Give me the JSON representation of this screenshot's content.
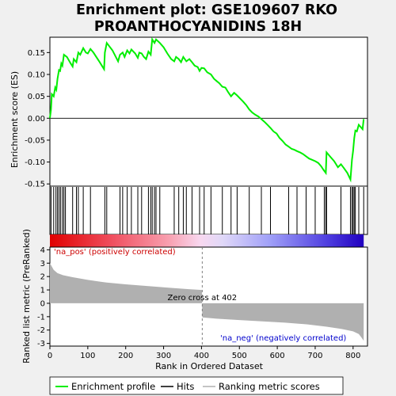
{
  "title_line1": "Enrichment plot: GSE109607 RKO",
  "title_line2": "PROANTHOCYANIDINS 18H",
  "chart_data": {
    "type": "line",
    "x_label": "Rank in Ordered Dataset",
    "top_panel": {
      "ylabel": "Enrichment score (ES)",
      "ylim": [
        -0.155,
        0.185
      ],
      "yticks": [
        "0.15",
        "0.10",
        "0.05",
        "0.00",
        "-0.05",
        "-0.10",
        "-0.15"
      ],
      "ytick_values": [
        0.15,
        0.1,
        0.05,
        0.0,
        -0.05,
        -0.1,
        -0.15
      ],
      "series_color": "#00ee00",
      "es_curve": [
        [
          0,
          0.0
        ],
        [
          3,
          0.02
        ],
        [
          5,
          0.055
        ],
        [
          10,
          0.05
        ],
        [
          14,
          0.07
        ],
        [
          17,
          0.065
        ],
        [
          20,
          0.09
        ],
        [
          24,
          0.11
        ],
        [
          27,
          0.108
        ],
        [
          30,
          0.125
        ],
        [
          33,
          0.12
        ],
        [
          37,
          0.145
        ],
        [
          45,
          0.14
        ],
        [
          55,
          0.125
        ],
        [
          60,
          0.118
        ],
        [
          63,
          0.135
        ],
        [
          70,
          0.128
        ],
        [
          75,
          0.15
        ],
        [
          80,
          0.145
        ],
        [
          88,
          0.16
        ],
        [
          95,
          0.15
        ],
        [
          100,
          0.148
        ],
        [
          107,
          0.158
        ],
        [
          115,
          0.15
        ],
        [
          130,
          0.13
        ],
        [
          143,
          0.112
        ],
        [
          145,
          0.15
        ],
        [
          150,
          0.172
        ],
        [
          165,
          0.155
        ],
        [
          180,
          0.13
        ],
        [
          185,
          0.145
        ],
        [
          192,
          0.15
        ],
        [
          197,
          0.14
        ],
        [
          204,
          0.155
        ],
        [
          210,
          0.148
        ],
        [
          215,
          0.157
        ],
        [
          225,
          0.148
        ],
        [
          232,
          0.138
        ],
        [
          236,
          0.15
        ],
        [
          242,
          0.148
        ],
        [
          248,
          0.14
        ],
        [
          254,
          0.135
        ],
        [
          260,
          0.152
        ],
        [
          266,
          0.145
        ],
        [
          270,
          0.18
        ],
        [
          276,
          0.172
        ],
        [
          280,
          0.18
        ],
        [
          290,
          0.172
        ],
        [
          300,
          0.162
        ],
        [
          310,
          0.148
        ],
        [
          320,
          0.135
        ],
        [
          328,
          0.13
        ],
        [
          333,
          0.14
        ],
        [
          340,
          0.135
        ],
        [
          346,
          0.128
        ],
        [
          352,
          0.14
        ],
        [
          360,
          0.13
        ],
        [
          368,
          0.135
        ],
        [
          375,
          0.128
        ],
        [
          382,
          0.12
        ],
        [
          390,
          0.117
        ],
        [
          395,
          0.108
        ],
        [
          400,
          0.115
        ],
        [
          407,
          0.114
        ],
        [
          415,
          0.105
        ],
        [
          425,
          0.1
        ],
        [
          433,
          0.09
        ],
        [
          440,
          0.085
        ],
        [
          447,
          0.08
        ],
        [
          455,
          0.072
        ],
        [
          463,
          0.07
        ],
        [
          470,
          0.06
        ],
        [
          478,
          0.05
        ],
        [
          486,
          0.058
        ],
        [
          494,
          0.052
        ],
        [
          502,
          0.045
        ],
        [
          510,
          0.038
        ],
        [
          518,
          0.03
        ],
        [
          526,
          0.02
        ],
        [
          534,
          0.013
        ],
        [
          542,
          0.008
        ],
        [
          550,
          0.004
        ],
        [
          558,
          -0.002
        ],
        [
          566,
          -0.008
        ],
        [
          574,
          -0.015
        ],
        [
          582,
          -0.022
        ],
        [
          590,
          -0.03
        ],
        [
          598,
          -0.035
        ],
        [
          606,
          -0.045
        ],
        [
          614,
          -0.052
        ],
        [
          622,
          -0.06
        ],
        [
          630,
          -0.065
        ],
        [
          638,
          -0.07
        ],
        [
          645,
          -0.072
        ],
        [
          652,
          -0.075
        ],
        [
          660,
          -0.078
        ],
        [
          668,
          -0.082
        ],
        [
          676,
          -0.087
        ],
        [
          684,
          -0.092
        ],
        [
          692,
          -0.095
        ],
        [
          700,
          -0.098
        ],
        [
          708,
          -0.102
        ],
        [
          716,
          -0.11
        ],
        [
          722,
          -0.118
        ],
        [
          728,
          -0.125
        ],
        [
          730,
          -0.078
        ],
        [
          740,
          -0.088
        ],
        [
          750,
          -0.098
        ],
        [
          760,
          -0.112
        ],
        [
          768,
          -0.105
        ],
        [
          775,
          -0.113
        ],
        [
          785,
          -0.125
        ],
        [
          793,
          -0.14
        ],
        [
          797,
          -0.095
        ],
        [
          800,
          -0.075
        ],
        [
          803,
          -0.045
        ],
        [
          806,
          -0.028
        ],
        [
          810,
          -0.03
        ],
        [
          815,
          -0.015
        ],
        [
          820,
          -0.02
        ],
        [
          825,
          -0.025
        ],
        [
          828,
          -0.002
        ]
      ]
    },
    "hits_panel": {
      "hit_ranks": [
        3,
        10,
        16,
        20,
        24,
        28,
        33,
        37,
        41,
        60,
        70,
        75,
        88,
        107,
        145,
        150,
        185,
        192,
        204,
        215,
        232,
        242,
        260,
        266,
        270,
        276,
        280,
        290,
        328,
        340,
        352,
        360,
        375,
        395,
        407,
        425,
        455,
        478,
        494,
        526,
        558,
        582,
        630,
        652,
        676,
        700,
        724,
        728,
        730,
        768,
        793,
        797,
        800,
        803,
        806,
        815,
        828
      ]
    },
    "ranked_panel": {
      "ylabel": "Ranked list metric (PreRanked)",
      "ylim": [
        -3.2,
        4.2
      ],
      "yticks": [
        "4",
        "3",
        "2",
        "1",
        "0",
        "-1",
        "-2",
        "-3"
      ],
      "ytick_values": [
        4,
        3,
        2,
        1,
        0,
        -1,
        -2,
        -3
      ],
      "metric_curve": [
        [
          0,
          3.0
        ],
        [
          5,
          2.75
        ],
        [
          10,
          2.5
        ],
        [
          20,
          2.25
        ],
        [
          35,
          2.1
        ],
        [
          60,
          1.95
        ],
        [
          100,
          1.75
        ],
        [
          150,
          1.55
        ],
        [
          200,
          1.42
        ],
        [
          260,
          1.28
        ],
        [
          320,
          1.15
        ],
        [
          370,
          1.05
        ],
        [
          401,
          1.0
        ],
        [
          402,
          -1.05
        ],
        [
          440,
          -1.15
        ],
        [
          500,
          -1.25
        ],
        [
          560,
          -1.35
        ],
        [
          620,
          -1.45
        ],
        [
          680,
          -1.58
        ],
        [
          730,
          -1.75
        ],
        [
          770,
          -1.92
        ],
        [
          800,
          -2.1
        ],
        [
          815,
          -2.3
        ],
        [
          822,
          -2.55
        ],
        [
          828,
          -2.8
        ]
      ],
      "fill_color": "#b0b0b0",
      "zero_cross_rank": 402,
      "zero_cross_label": "Zero cross at 402",
      "pos_label": "'na_pos' (positively correlated)",
      "neg_label": "'na_neg' (negatively correlated)",
      "pos_color": "#cc0000",
      "neg_color": "#0000cc"
    },
    "xlim": [
      0,
      838
    ],
    "xticks": [
      "0",
      "100",
      "200",
      "300",
      "400",
      "500",
      "600",
      "700",
      "800"
    ],
    "xtick_values": [
      0,
      100,
      200,
      300,
      400,
      500,
      600,
      700,
      800
    ],
    "legend": [
      {
        "label": "Enrichment profile",
        "color": "#00ee00"
      },
      {
        "label": "Hits",
        "color": "#000000"
      },
      {
        "label": "Ranking metric scores",
        "color": "#b0b0b0"
      }
    ]
  }
}
